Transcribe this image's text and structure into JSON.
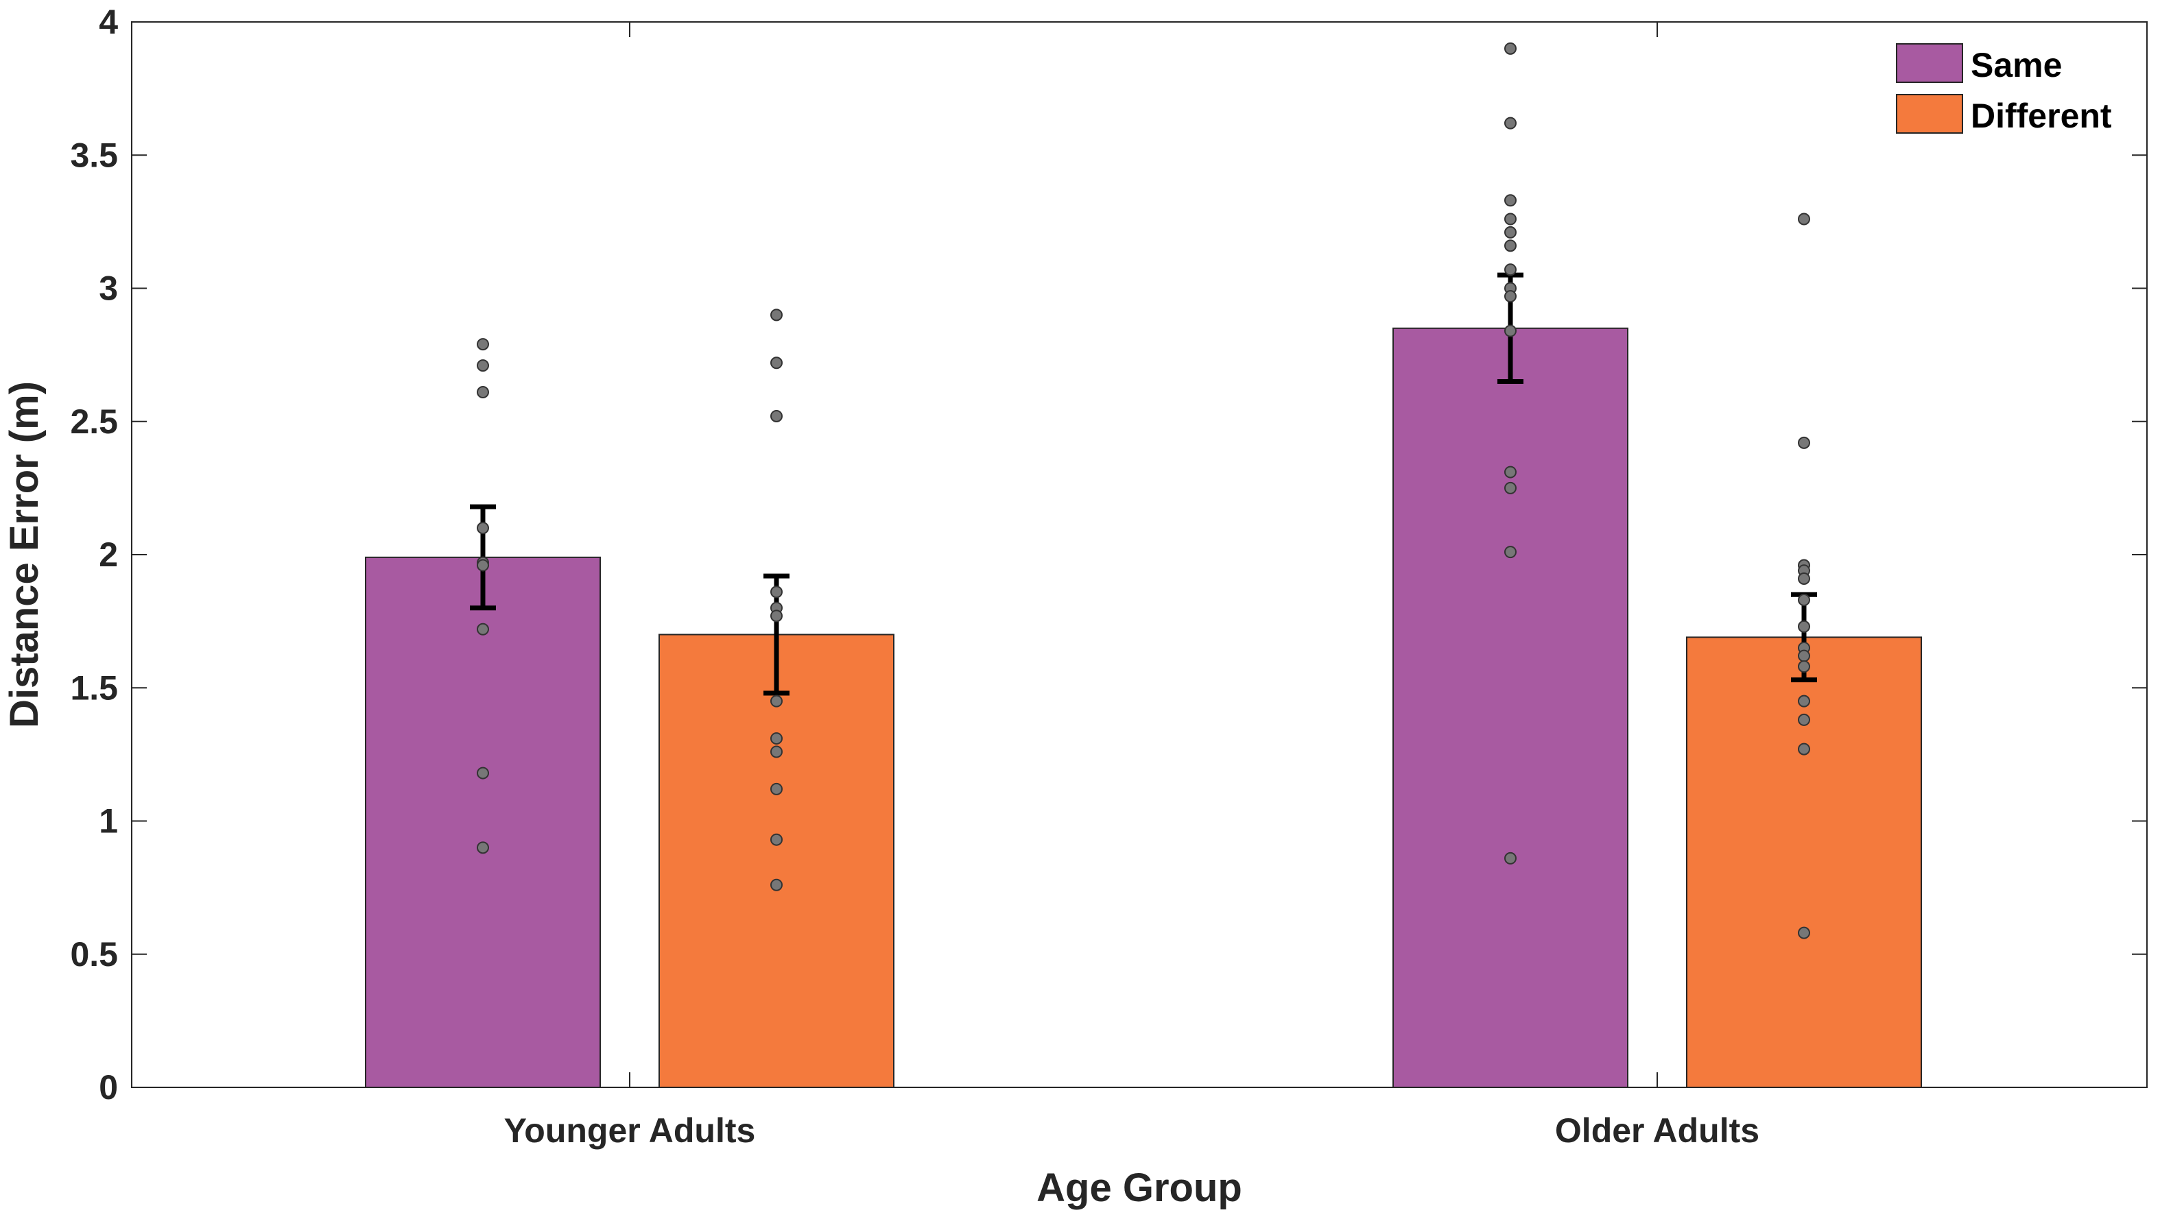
{
  "chart_data": {
    "type": "bar",
    "title": "",
    "xlabel": "Age Group",
    "ylabel": "Distance Error (m)",
    "ylim": [
      0,
      4
    ],
    "yticks": [
      "0",
      "0.5",
      "1",
      "1.5",
      "2",
      "2.5",
      "3",
      "3.5",
      "4"
    ],
    "categories": [
      "Younger Adults",
      "Older Adults"
    ],
    "legend_position": "top-right",
    "grid": false,
    "series": [
      {
        "name": "Same",
        "color": "#A85AA1",
        "values": [
          1.99,
          2.85
        ],
        "error": [
          0.19,
          0.2
        ],
        "points": [
          [
            2.79,
            2.71,
            2.61,
            2.1,
            1.97,
            1.96,
            1.72,
            1.18,
            0.9
          ],
          [
            3.9,
            3.62,
            3.33,
            3.26,
            3.21,
            3.16,
            3.07,
            3.0,
            2.97,
            2.84,
            2.31,
            2.25,
            2.01,
            0.86
          ]
        ]
      },
      {
        "name": "Different",
        "color": "#F47A3D",
        "values": [
          1.7,
          1.69
        ],
        "error": [
          0.22,
          0.16
        ],
        "points": [
          [
            2.9,
            2.72,
            2.52,
            1.86,
            1.8,
            1.77,
            1.45,
            1.31,
            1.26,
            1.12,
            0.93,
            0.76
          ],
          [
            3.26,
            2.42,
            1.96,
            1.94,
            1.91,
            1.83,
            1.73,
            1.65,
            1.62,
            1.58,
            1.45,
            1.38,
            1.27,
            0.58
          ]
        ]
      }
    ]
  }
}
